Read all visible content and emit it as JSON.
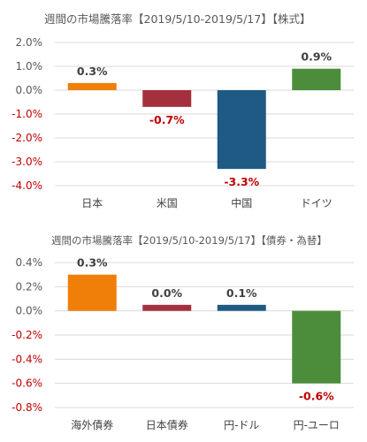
{
  "chart_data": [
    {
      "type": "bar",
      "title": "週間の市場騰落率【2019/5/10-2019/5/17】【株式】",
      "categories": [
        "日本",
        "米国",
        "中国",
        "ドイツ"
      ],
      "values": [
        0.3,
        -0.7,
        -3.3,
        0.9
      ],
      "value_labels": [
        "0.3%",
        "-0.7%",
        "-3.3%",
        "0.9%"
      ],
      "bar_colors": [
        "#f07f09",
        "#a5303d",
        "#1f5a84",
        "#4c8d3c"
      ],
      "label_colors": [
        "#404040",
        "#c00000",
        "#c00000",
        "#404040"
      ],
      "ylim": [
        -4.0,
        2.0
      ],
      "yticks": [
        2.0,
        1.0,
        0.0,
        -1.0,
        -2.0,
        -3.0,
        -4.0
      ],
      "ytick_labels": [
        "2.0%",
        "1.0%",
        "0.0%",
        "-1.0%",
        "-2.0%",
        "-3.0%",
        "-4.0%"
      ],
      "ytick_colors": [
        "#595959",
        "#595959",
        "#595959",
        "#c00000",
        "#c00000",
        "#c00000",
        "#c00000"
      ],
      "grid": true,
      "legend": "none"
    },
    {
      "type": "bar",
      "title": "週間の市場騰落率【2019/5/10-2019/5/17】【債券・為替】",
      "categories": [
        "海外債券",
        "日本債券",
        "円-ドル",
        "円-ユーロ"
      ],
      "values": [
        0.3,
        0.0,
        0.1,
        -0.6
      ],
      "display_values": [
        0.3,
        0.05,
        0.05,
        -0.6
      ],
      "value_labels": [
        "0.3%",
        "0.0%",
        "0.1%",
        "-0.6%"
      ],
      "bar_colors": [
        "#f07f09",
        "#a5303d",
        "#1f5a84",
        "#4c8d3c"
      ],
      "label_colors": [
        "#404040",
        "#404040",
        "#404040",
        "#c00000"
      ],
      "ylim": [
        -0.8,
        0.4
      ],
      "yticks": [
        0.4,
        0.2,
        0.0,
        -0.2,
        -0.4,
        -0.6,
        -0.8
      ],
      "ytick_labels": [
        "0.4%",
        "0.2%",
        "0.0%",
        "-0.2%",
        "-0.4%",
        "-0.6%",
        "-0.8%"
      ],
      "ytick_colors": [
        "#595959",
        "#595959",
        "#595959",
        "#c00000",
        "#c00000",
        "#c00000",
        "#c00000"
      ],
      "grid": true,
      "legend": "none"
    }
  ]
}
